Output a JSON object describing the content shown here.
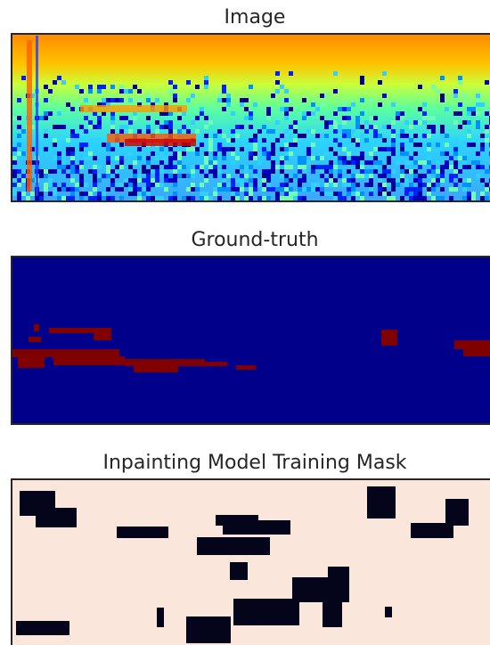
{
  "panels": [
    {
      "title": "Image"
    },
    {
      "title": "Ground-truth"
    },
    {
      "title": "Inpainting Model Training Mask"
    }
  ]
}
